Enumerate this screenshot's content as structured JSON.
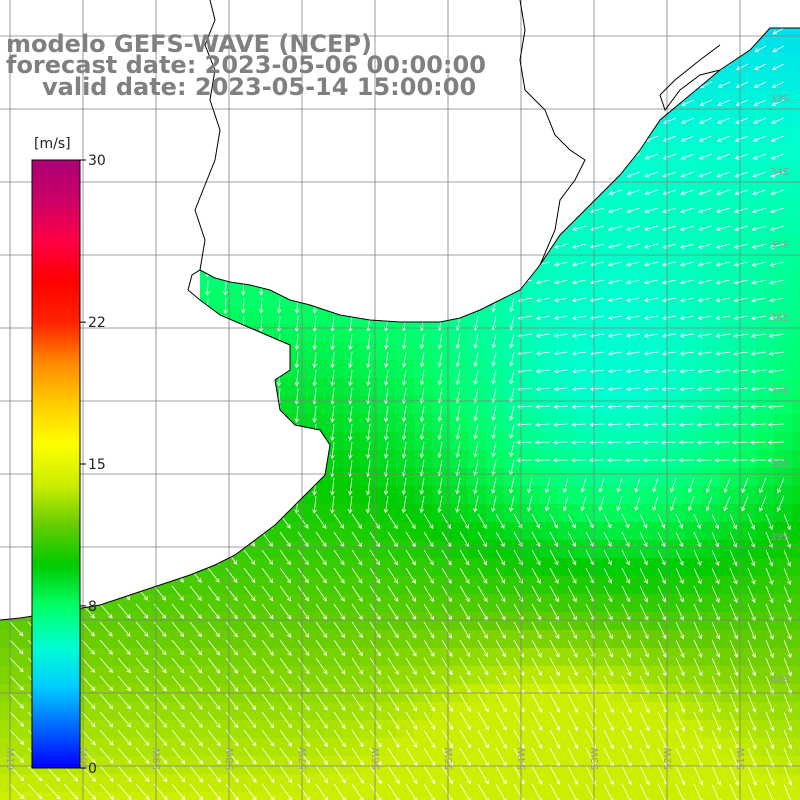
{
  "header": {
    "model_line": "modelo GEFS-WAVE (NCEP)",
    "forecast_line": "forecast date: 2023-05-06 00:00:00",
    "valid_line": "valid date: 2023-05-14 15:00:00"
  },
  "colorbar": {
    "unit": "[m/s]",
    "min": 0,
    "max": 30,
    "ticks": [
      {
        "value": 30,
        "label": "30"
      },
      {
        "value": 22,
        "label": "22"
      },
      {
        "value": 15,
        "label": "15"
      },
      {
        "value": 8,
        "label": "8"
      },
      {
        "value": 0,
        "label": "0"
      }
    ],
    "stops": [
      "#0000ff",
      "#0066ff",
      "#00ccff",
      "#00ffd0",
      "#00ff66",
      "#00cc00",
      "#66cc00",
      "#ccee00",
      "#ffff00",
      "#ffcc00",
      "#ff8800",
      "#ff2200",
      "#ff0000",
      "#ff0044",
      "#cc0066",
      "#aa0077"
    ]
  },
  "lat_labels": [
    "33S",
    "34S",
    "35S",
    "36S",
    "37S",
    "38S",
    "39S",
    "40S"
  ],
  "lon_labels": [
    "61W",
    "60W",
    "59W",
    "58W",
    "57W",
    "56W",
    "55W",
    "54W",
    "53W",
    "52W",
    "51W"
  ],
  "colors": {
    "land": "#ffffff",
    "grid": "#808080",
    "coast": "#000000",
    "arrow": "#ffffff"
  }
}
